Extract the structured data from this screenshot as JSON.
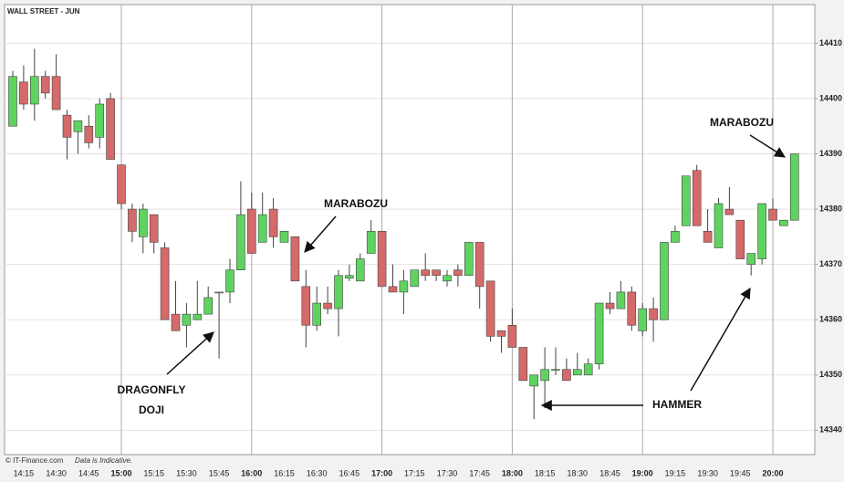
{
  "chart_data": {
    "type": "candlestick",
    "title": "WALL STREET - JUN",
    "annotations": [
      "MARABOZU",
      "MARABOZU",
      "DRAGONFLY",
      "DOJI",
      "HAMMER"
    ],
    "source": "© IT-Finance.com",
    "note": "Data is Indicative.",
    "categories": [
      null,
      "14:15",
      null,
      null,
      "14:30",
      null,
      null,
      "14:45",
      null,
      null,
      "15:00",
      null,
      null,
      "15:15",
      null,
      null,
      "15:30",
      null,
      null,
      "15:45",
      null,
      null,
      "16:00",
      null,
      null,
      "16:15",
      null,
      null,
      "16:30",
      null,
      null,
      "16:45",
      null,
      null,
      "17:00",
      null,
      null,
      "17:15",
      null,
      null,
      "17:30",
      null,
      null,
      "17:45",
      null,
      null,
      "18:00",
      null,
      null,
      "18:15",
      null,
      null,
      "18:30",
      null,
      null,
      "18:45",
      null,
      null,
      "19:00",
      null,
      null,
      "19:15",
      null,
      null,
      "19:30",
      null,
      null,
      "19:45",
      null,
      null,
      "20:00",
      null,
      null
    ],
    "open": [
      14395,
      14403,
      14399,
      14404,
      14404,
      14397,
      14394,
      14395,
      14393,
      14400,
      14388,
      14380,
      14375,
      14379,
      14373,
      14361,
      14359,
      14360,
      14361,
      14365,
      14365,
      14369,
      14380,
      14374,
      14380,
      14374,
      14375,
      14366,
      14359,
      14363,
      14362,
      14367.5,
      14367,
      14372,
      14376,
      14366,
      14365,
      14366,
      14369,
      14369,
      14367,
      14369,
      14368,
      14374,
      14367,
      14358,
      14359,
      14355,
      14348,
      14349,
      14351,
      14351,
      14350,
      14350,
      14352,
      14363,
      14362,
      14365,
      14358,
      14362,
      14360,
      14374,
      14377,
      14387,
      14376,
      14373,
      14380,
      14378,
      14370,
      14371,
      14380,
      14377,
      14378
    ],
    "high": [
      14405,
      14406,
      14409,
      14405,
      14408,
      14398,
      14396,
      14397,
      14400,
      14401,
      14388,
      14381,
      14381,
      14379,
      14374,
      14367,
      14363,
      14367,
      14366,
      14365,
      14371,
      14385,
      14383,
      14383,
      14382,
      14376,
      14375,
      14369,
      14366,
      14366,
      14369,
      14370,
      14372,
      14378,
      14376,
      14370,
      14369,
      14369,
      14372,
      14369,
      14369,
      14370,
      14374,
      14374,
      14367,
      14358,
      14362,
      14355,
      14350,
      14355,
      14355,
      14353,
      14354,
      14353,
      14363,
      14365,
      14367,
      14366,
      14363,
      14364,
      14374,
      14377,
      14386,
      14388,
      14380,
      14382,
      14384,
      14378,
      14372,
      14381,
      14382,
      14378,
      14390
    ],
    "low": [
      14395,
      14398,
      14396,
      14400,
      14398,
      14389,
      14390,
      14391,
      14391,
      14389,
      14380,
      14374,
      14372,
      14372,
      14360,
      14358,
      14355,
      14360,
      14361,
      14353,
      14363,
      14369,
      14372,
      14374,
      14373,
      14374,
      14367,
      14355,
      14358,
      14361,
      14357,
      14367,
      14367,
      14372,
      14366,
      14365,
      14361,
      14366,
      14367,
      14367,
      14366,
      14366,
      14368,
      14362,
      14356,
      14354,
      14355,
      14349,
      14342,
      14344,
      14350,
      14349,
      14350,
      14350,
      14351,
      14361,
      14362,
      14358,
      14357,
      14356,
      14360,
      14374,
      14377,
      14377,
      14374,
      14373,
      14379,
      14371,
      14368,
      14370,
      14378,
      14377,
      14378
    ],
    "close": [
      14404,
      14399,
      14404,
      14401,
      14398,
      14393,
      14396,
      14392,
      14399,
      14389,
      14381,
      14376,
      14380,
      14374,
      14360,
      14358,
      14361,
      14361,
      14364,
      14365,
      14369,
      14379,
      14372,
      14379,
      14375,
      14376,
      14367,
      14359,
      14363,
      14362,
      14368,
      14368,
      14371,
      14376,
      14366,
      14365,
      14367,
      14369,
      14368,
      14368,
      14368,
      14368,
      14374,
      14366,
      14357,
      14357,
      14355,
      14349,
      14350,
      14351,
      14351,
      14349,
      14351,
      14352,
      14363,
      14362,
      14365,
      14359,
      14362,
      14360,
      14374,
      14376,
      14386,
      14377,
      14374,
      14381,
      14379,
      14371,
      14372,
      14381,
      14378,
      14378,
      14390
    ],
    "up_color": "#5fd35f",
    "down_color": "#d46a6a",
    "ylim": [
      14335.6,
      14417
    ],
    "yticks": [
      14340,
      14350,
      14360,
      14370,
      14380,
      14390,
      14400,
      14410
    ],
    "grid": true,
    "y_axis_side": "right"
  }
}
